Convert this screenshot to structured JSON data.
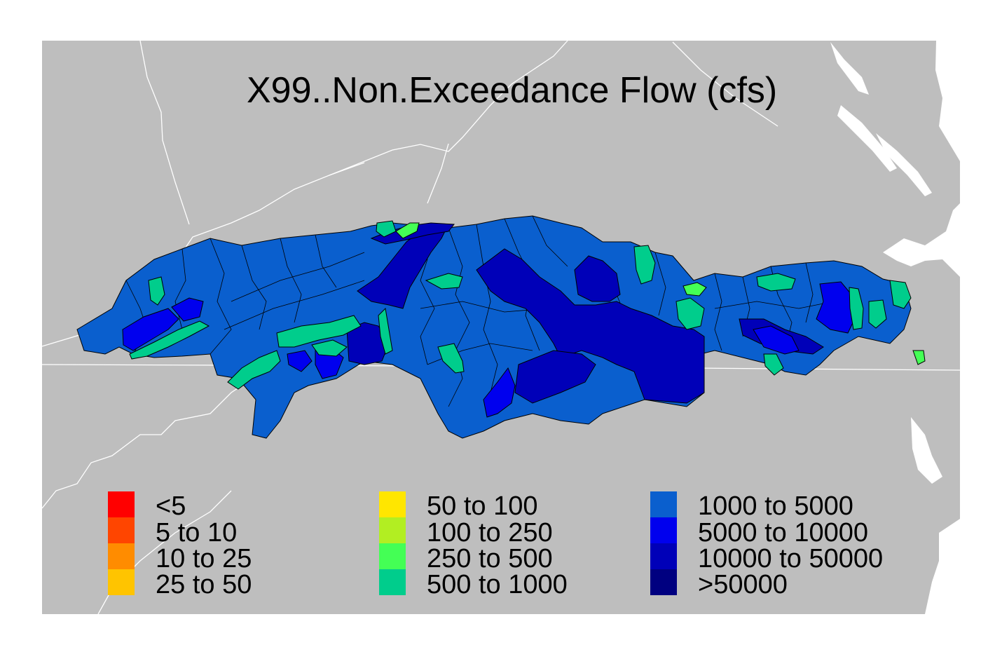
{
  "map": {
    "title": "X99..Non.Exceedance Flow (cfs)",
    "background_color": "#bebebe",
    "water_color": "#ffffff",
    "boundary_color": "#ffffff",
    "watershed_outline_color": "#000000"
  },
  "legend": {
    "columns": [
      [
        {
          "label": "<5",
          "color": "#ff0000"
        },
        {
          "label": "5 to 10",
          "color": "#ff4500"
        },
        {
          "label": "10 to 25",
          "color": "#ff8c00"
        },
        {
          "label": "25 to 50",
          "color": "#ffc400"
        }
      ],
      [
        {
          "label": "50 to 100",
          "color": "#ffe600"
        },
        {
          "label": "100 to 250",
          "color": "#b2ee22"
        },
        {
          "label": "250 to 500",
          "color": "#44ff55"
        },
        {
          "label": "500 to 1000",
          "color": "#00cd8c"
        }
      ],
      [
        {
          "label": "1000 to 5000",
          "color": "#0a5fce"
        },
        {
          "label": "5000 to 10000",
          "color": "#0000ee"
        },
        {
          "label": "10000 to 50000",
          "color": "#0000b8"
        },
        {
          "label": ">50000",
          "color": "#000080"
        }
      ]
    ]
  }
}
